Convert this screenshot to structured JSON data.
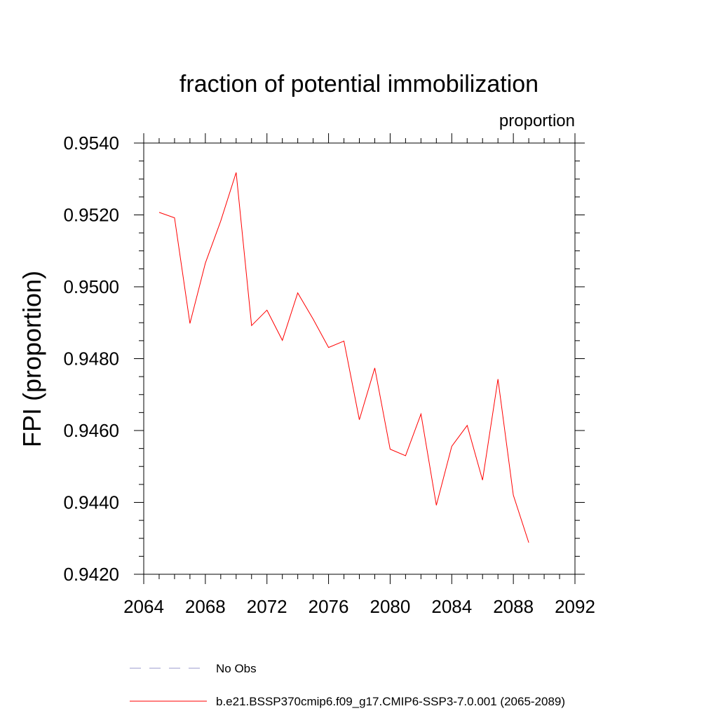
{
  "chart_data": {
    "type": "line",
    "title": "fraction of potential immobilization",
    "units_label": "proportion",
    "xlabel": "",
    "ylabel": "FPI  (proportion)",
    "xlim": [
      2064,
      2092
    ],
    "ylim": [
      0.942,
      0.954
    ],
    "xticks": [
      2064,
      2068,
      2072,
      2076,
      2080,
      2084,
      2088,
      2092
    ],
    "xtick_labels": [
      "2064",
      "2068",
      "2072",
      "2076",
      "2080",
      "2084",
      "2088",
      "2092"
    ],
    "yticks": [
      0.942,
      0.944,
      0.946,
      0.948,
      0.95,
      0.952,
      0.954
    ],
    "ytick_labels": [
      "0.9420",
      "0.9440",
      "0.9460",
      "0.9480",
      "0.9500",
      "0.9520",
      "0.9540"
    ],
    "grid": false,
    "legend_position": "bottom",
    "series": [
      {
        "name": "b.e21.BSSP370cmip6.f09_g17.CMIP6-SSP3-7.0.001 (2065-2089)",
        "color": "#ff0000",
        "style": "solid",
        "x": [
          2065,
          2066,
          2067,
          2068,
          2069,
          2070,
          2071,
          2072,
          2073,
          2074,
          2075,
          2076,
          2077,
          2078,
          2079,
          2080,
          2081,
          2082,
          2083,
          2084,
          2085,
          2086,
          2087,
          2088,
          2089
        ],
        "y": [
          0.95207,
          0.95192,
          0.94898,
          0.95066,
          0.95183,
          0.95318,
          0.94892,
          0.94935,
          0.94851,
          0.94983,
          0.9491,
          0.94831,
          0.94849,
          0.9463,
          0.94774,
          0.94548,
          0.9453,
          0.94646,
          0.94392,
          0.94556,
          0.94614,
          0.94462,
          0.94743,
          0.9442,
          0.94288
        ]
      }
    ],
    "legend": [
      {
        "label": "No Obs",
        "color": "#9999cc",
        "style": "dashed"
      },
      {
        "label": "b.e21.BSSP370cmip6.f09_g17.CMIP6-SSP3-7.0.001 (2065-2089)",
        "color": "#ff0000",
        "style": "solid"
      }
    ]
  }
}
